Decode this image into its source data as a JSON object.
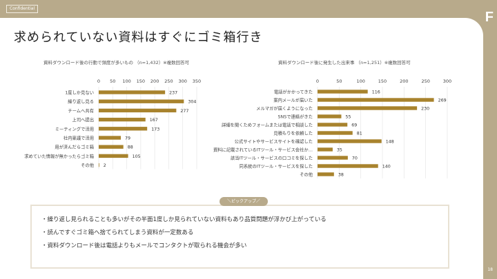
{
  "header": {
    "confidential": "Confidential",
    "logo": "F",
    "page_number": "18",
    "title": "求められていない資料はすぐにゴミ箱行き"
  },
  "accent": "#a8832d",
  "chart_data": [
    {
      "type": "bar",
      "orientation": "horizontal",
      "title": "資料ダウンロード後の行動で頻度が多いもの （n=1,432）※複数回答可",
      "xlim": [
        0,
        350
      ],
      "ticks": [
        0,
        50,
        100,
        150,
        200,
        250,
        300,
        350
      ],
      "grid": true,
      "categories": [
        "1度しか見ない",
        "繰り返し見る",
        "チームへ共有",
        "上司へ提出",
        "ミーティングで活用",
        "社内稟議で活用",
        "用が済んだらゴミ箱",
        "求めていた情報が無かったらゴミ箱",
        "その他"
      ],
      "values": [
        237,
        304,
        277,
        167,
        173,
        79,
        88,
        105,
        2
      ]
    },
    {
      "type": "bar",
      "orientation": "horizontal",
      "title": "資料ダウンロード後に発生した出来事 （n=1,251）※複数回答可",
      "xlim": [
        0,
        300
      ],
      "ticks": [
        0,
        50,
        100,
        150,
        200,
        250,
        300
      ],
      "grid": true,
      "categories": [
        "電話がかかってきた",
        "案内メールが届いた",
        "メルマガが届くようになった",
        "SNSで連絡がきた",
        "詳細を聞くためフォームまたは電話で相談した",
        "見積もりを依頼した",
        "公式サイトやサービスサイトを確認した",
        "資料に記載されているITツール・サービス会社か…",
        "該当ITツール・サービスの口コミを探した",
        "同系統のITツール・サービスを探した",
        "その他"
      ],
      "values": [
        116,
        269,
        230,
        55,
        69,
        81,
        148,
        35,
        70,
        140,
        38
      ]
    }
  ],
  "pickup": {
    "label": "＼ピックアップ／",
    "items": [
      "・繰り返し見られることも多いがその半面1度しか見られていない資料もあり品質問題が浮かび上がっている",
      "・読んですぐゴミ箱へ捨てられてしまう資料が一定数ある",
      "・資料ダウンロード後は電話よりもメールでコンタクトが取られる機会が多い"
    ]
  }
}
